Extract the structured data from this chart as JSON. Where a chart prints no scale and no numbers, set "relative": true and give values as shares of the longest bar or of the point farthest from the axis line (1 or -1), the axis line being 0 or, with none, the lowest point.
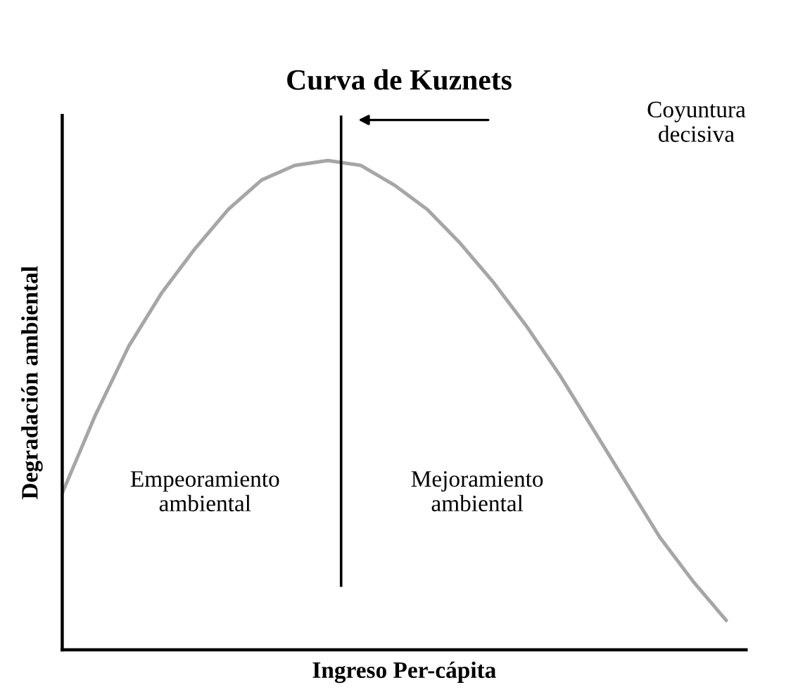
{
  "chart_data": {
    "type": "line",
    "title": "Curva de Kuznets",
    "xlabel": "Ingreso Per-cápita",
    "ylabel": "Degradación ambiental",
    "relative": true,
    "categories": [
      null,
      null,
      null,
      null,
      null,
      null,
      null,
      null,
      null,
      null,
      null,
      null,
      null,
      null,
      null,
      null,
      null,
      null,
      null,
      null,
      null
    ],
    "series": [
      {
        "color": "#a6a6a6",
        "values": [
          0.32,
          0.48,
          0.62,
          0.73,
          0.82,
          0.9,
          0.96,
          0.99,
          1.0,
          0.99,
          0.95,
          0.9,
          0.83,
          0.75,
          0.66,
          0.56,
          0.45,
          0.34,
          0.23,
          0.14,
          0.06
        ]
      }
    ],
    "annotations": [
      "Empeoramiento\nambiental",
      "Mejoramiento\nambiental",
      "Coyuntura\ndecisiva"
    ],
    "grid": false,
    "legend": false,
    "tick_labels": false
  }
}
